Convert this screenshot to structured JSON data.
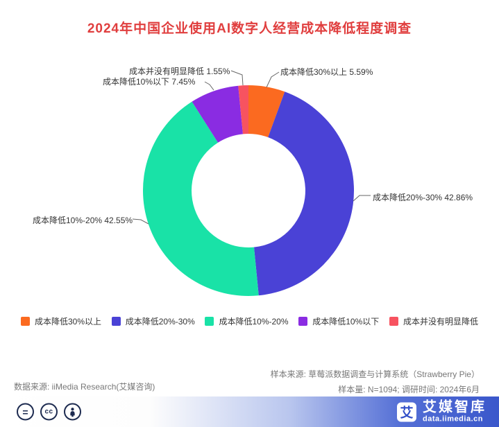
{
  "title": "2024年中国企业使用AI数字人经营成本降低程度调查",
  "chart_data": {
    "type": "pie",
    "donut": true,
    "title": "2024年中国企业使用AI数字人经营成本降低程度调查",
    "legend_position": "bottom",
    "slices": [
      {
        "label": "成本降低30%以上",
        "value": 5.59,
        "color": "#fb6a20"
      },
      {
        "label": "成本降低20%-30%",
        "value": 42.86,
        "color": "#4a42d6"
      },
      {
        "label": "成本降低10%-20%",
        "value": 42.55,
        "color": "#19e2a7"
      },
      {
        "label": "成本降低10%以下",
        "value": 7.45,
        "color": "#8a2ce2"
      },
      {
        "label": "成本并没有明显降低",
        "value": 1.55,
        "color": "#f75360"
      }
    ],
    "callouts": [
      {
        "text": "成本并没有明显降低 1.55%"
      },
      {
        "text": "成本降低10%以下 7.45%"
      },
      {
        "text": "成本降低30%以上 5.59%"
      },
      {
        "text": "成本降低20%-30% 42.86%"
      },
      {
        "text": "成本降低10%-20% 42.55%"
      }
    ]
  },
  "footer": {
    "sample_source": "样本来源: 草莓派数据调查与计算系统（Strawberry Pie）",
    "sample_info": "样本量: N=1094; 调研时间: 2024年6月",
    "data_source": "数据来源: iiMedia Research(艾媒咨询)"
  },
  "brand": {
    "name": "艾媒智库",
    "url": "data.iimedia.cn",
    "logo_char": "艾",
    "icons": {
      "equals": "=",
      "cc": "cc"
    }
  },
  "colors": {
    "title_red": "#e03e3e",
    "bar_blue": "#3a57cb"
  }
}
